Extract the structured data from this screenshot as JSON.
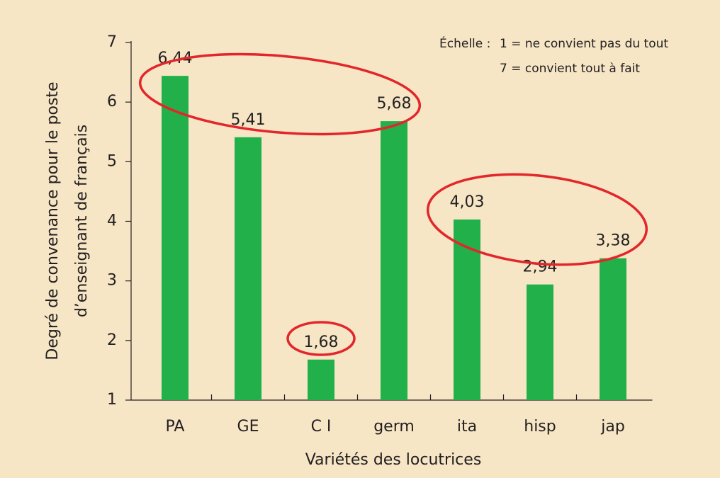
{
  "chart_data": {
    "type": "bar",
    "x_label": "Variétés des locutrices",
    "y_label": [
      "Degré de convenance pour le poste",
      "d’enseignant de français"
    ],
    "annotations": [
      "Échelle :",
      "1 = ne convient pas du tout",
      "7 = convient tout à fait"
    ],
    "categories": [
      "PA",
      "GE",
      "C I",
      "germ",
      "ita",
      "hisp",
      "jap"
    ],
    "values": [
      6.44,
      5.41,
      1.68,
      5.68,
      4.03,
      2.94,
      3.38
    ],
    "value_labels": [
      "6,44",
      "5,41",
      "1,68",
      "5,68",
      "4,03",
      "2,94",
      "3,38"
    ],
    "color": "#22b04b",
    "ylim": [
      1,
      7
    ],
    "yticks": [
      1,
      2,
      3,
      4,
      5,
      6,
      7
    ],
    "grid": false
  }
}
